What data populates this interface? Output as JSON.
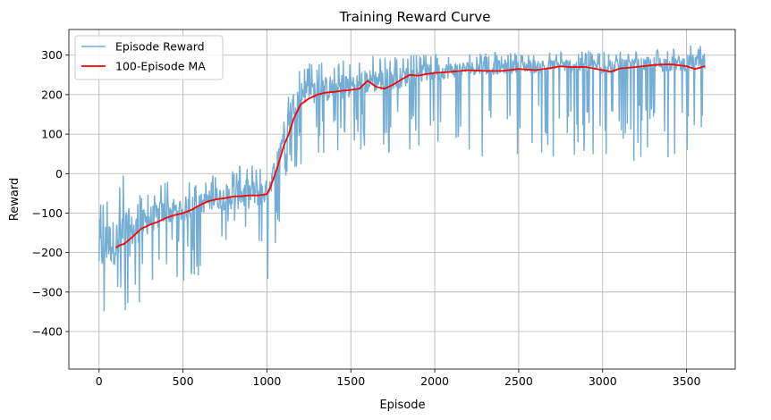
{
  "chart_data": {
    "type": "line",
    "title": "Training Reward Curve",
    "xlabel": "Episode",
    "ylabel": "Reward",
    "xlim": [
      -180,
      3790
    ],
    "ylim": [
      -495,
      365
    ],
    "x_ticks": [
      0,
      500,
      1000,
      1500,
      2000,
      2500,
      3000,
      3500
    ],
    "y_ticks": [
      -400,
      -300,
      -200,
      -100,
      0,
      100,
      200,
      300
    ],
    "grid": true,
    "legend": "top-left",
    "series": [
      {
        "name": "Episode Reward",
        "color": "#74aed4",
        "x_range": [
          0,
          3610
        ],
        "envelope": {
          "x": [
            0,
            50,
            100,
            150,
            200,
            300,
            400,
            500,
            600,
            700,
            800,
            900,
            1000,
            1050,
            1100,
            1150,
            1200,
            1250,
            1300,
            1400,
            1500,
            1600,
            1700,
            1800,
            1900,
            2000,
            2100,
            2200,
            2300,
            2400,
            2500,
            2600,
            2700,
            2800,
            2900,
            3000,
            3100,
            3200,
            3300,
            3400,
            3500,
            3610
          ],
          "upper": [
            -30,
            -60,
            -50,
            40,
            -60,
            -40,
            -20,
            -20,
            -20,
            0,
            20,
            30,
            20,
            80,
            170,
            240,
            270,
            280,
            280,
            290,
            300,
            300,
            300,
            300,
            300,
            305,
            305,
            305,
            305,
            310,
            305,
            310,
            310,
            310,
            315,
            310,
            310,
            310,
            320,
            320,
            325,
            330
          ],
          "lower": [
            -430,
            -400,
            -330,
            -380,
            -350,
            -330,
            -260,
            -290,
            -260,
            -200,
            -160,
            -150,
            -290,
            -250,
            -40,
            0,
            20,
            40,
            40,
            60,
            40,
            60,
            40,
            60,
            50,
            60,
            50,
            60,
            40,
            40,
            50,
            30,
            30,
            30,
            30,
            30,
            40,
            30,
            40,
            40,
            40,
            50
          ]
        },
        "mean": {
          "x": [
            0,
            50,
            100,
            150,
            200,
            300,
            400,
            500,
            600,
            700,
            800,
            900,
            1000,
            1050,
            1100,
            1150,
            1200,
            1250,
            1300,
            1400,
            1500,
            1600,
            1700,
            1800,
            1900,
            2000,
            2100,
            2200,
            2300,
            2400,
            2500,
            2600,
            2700,
            2800,
            2900,
            3000,
            3100,
            3200,
            3300,
            3400,
            3500,
            3610
          ],
          "y": [
            -200,
            -180,
            -180,
            -170,
            -150,
            -120,
            -100,
            -95,
            -80,
            -65,
            -60,
            -55,
            -50,
            10,
            100,
            170,
            200,
            210,
            205,
            215,
            220,
            230,
            235,
            240,
            250,
            255,
            260,
            265,
            265,
            268,
            270,
            270,
            272,
            272,
            274,
            270,
            272,
            274,
            276,
            276,
            278,
            280
          ]
        }
      },
      {
        "name": "100-Episode MA",
        "color": "#ff0000",
        "x": [
          100,
          120,
          150,
          200,
          250,
          300,
          350,
          400,
          450,
          500,
          550,
          600,
          650,
          700,
          750,
          800,
          850,
          900,
          950,
          1000,
          1020,
          1050,
          1080,
          1100,
          1130,
          1160,
          1200,
          1250,
          1300,
          1350,
          1400,
          1450,
          1500,
          1550,
          1600,
          1650,
          1700,
          1750,
          1800,
          1850,
          1900,
          1950,
          2000,
          2100,
          2200,
          2300,
          2400,
          2500,
          2600,
          2700,
          2750,
          2800,
          2900,
          3000,
          3050,
          3100,
          3200,
          3300,
          3400,
          3500,
          3550,
          3610
        ],
        "y": [
          -188,
          -182,
          -178,
          -160,
          -140,
          -130,
          -122,
          -112,
          -105,
          -100,
          -92,
          -80,
          -70,
          -65,
          -62,
          -58,
          -57,
          -55,
          -55,
          -52,
          -35,
          0,
          40,
          70,
          100,
          140,
          175,
          190,
          200,
          205,
          207,
          210,
          212,
          215,
          235,
          220,
          215,
          225,
          238,
          250,
          248,
          252,
          255,
          258,
          262,
          260,
          260,
          265,
          262,
          268,
          272,
          270,
          270,
          262,
          258,
          266,
          270,
          275,
          277,
          272,
          265,
          272
        ]
      }
    ]
  }
}
